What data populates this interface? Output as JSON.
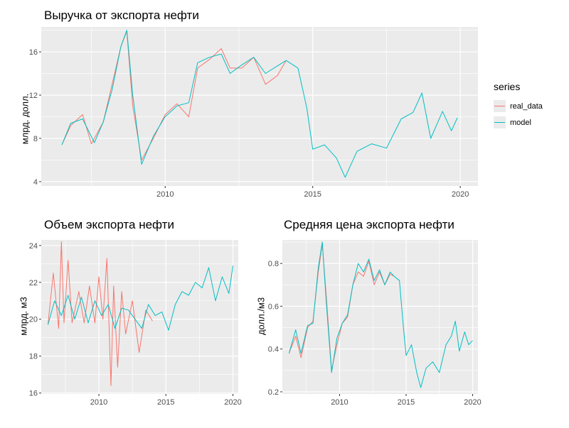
{
  "colors": {
    "real_data": "#F8766D",
    "model": "#00BFC4",
    "panel": "#EBEBEB",
    "grid": "#FFFFFF"
  },
  "legend": {
    "title": "series",
    "items": [
      {
        "label": "real_data",
        "key": "real_data"
      },
      {
        "label": "model",
        "key": "model"
      }
    ]
  },
  "chart_data": [
    {
      "type": "line",
      "title": "Выручка от экспорта нефти",
      "ylabel": "млрд. долл.",
      "xlabel": "",
      "xlim": [
        2005.8,
        2020.6
      ],
      "ylim": [
        3.6,
        18.3
      ],
      "xticks": [
        2010,
        2015,
        2020
      ],
      "yticks": [
        4,
        8,
        12,
        16
      ],
      "series": [
        {
          "name": "real_data",
          "x": [
            2006.5,
            2006.8,
            2007.2,
            2007.5,
            2007.9,
            2008.2,
            2008.5,
            2008.7,
            2008.9,
            2009.2,
            2009.6,
            2010.0,
            2010.4,
            2010.8,
            2011.1,
            2011.5,
            2011.9,
            2012.2,
            2012.6,
            2013.0,
            2013.4,
            2013.8,
            2014.1
          ],
          "y": [
            7.4,
            9.2,
            10.2,
            7.5,
            9.5,
            13.0,
            16.5,
            17.9,
            11.0,
            6.0,
            8.0,
            10.2,
            11.2,
            10.0,
            14.5,
            15.3,
            16.3,
            14.5,
            14.5,
            15.5,
            13.0,
            13.8,
            15.2
          ]
        },
        {
          "name": "model",
          "x": [
            2006.5,
            2006.8,
            2007.2,
            2007.6,
            2007.9,
            2008.2,
            2008.5,
            2008.7,
            2008.9,
            2009.2,
            2009.6,
            2010.0,
            2010.4,
            2010.8,
            2011.1,
            2011.5,
            2011.9,
            2012.2,
            2012.6,
            2013.0,
            2013.4,
            2013.8,
            2014.1,
            2014.5,
            2014.8,
            2015.0,
            2015.4,
            2015.8,
            2016.1,
            2016.5,
            2017.0,
            2017.5,
            2018.0,
            2018.4,
            2018.7,
            2019.0,
            2019.4,
            2019.7,
            2019.9
          ],
          "y": [
            7.4,
            9.4,
            9.8,
            7.6,
            9.5,
            12.5,
            16.5,
            18.0,
            12.0,
            5.6,
            8.2,
            10.0,
            11.0,
            11.3,
            15.0,
            15.5,
            15.8,
            14.0,
            14.8,
            15.5,
            14.0,
            14.7,
            15.2,
            14.5,
            10.8,
            7.0,
            7.4,
            6.2,
            4.4,
            6.8,
            7.5,
            7.1,
            9.8,
            10.4,
            12.2,
            8.0,
            10.5,
            8.7,
            9.9
          ]
        }
      ]
    },
    {
      "type": "line",
      "title": "Объем экспорта нефти",
      "ylabel": "млрд. м3",
      "xlabel": "",
      "xlim": [
        2005.7,
        2020.4
      ],
      "ylim": [
        15.95,
        24.3
      ],
      "xticks": [
        2010,
        2015,
        2020
      ],
      "yticks": [
        16,
        18,
        20,
        22,
        24
      ],
      "series": [
        {
          "name": "real_data",
          "x": [
            2006.2,
            2006.6,
            2007.0,
            2007.2,
            2007.4,
            2007.7,
            2008.0,
            2008.5,
            2008.9,
            2009.3,
            2009.7,
            2010.0,
            2010.3,
            2010.6,
            2010.9,
            2011.1,
            2011.4,
            2011.7,
            2012.0,
            2012.5,
            2013.0,
            2013.5,
            2014.0
          ],
          "y": [
            19.7,
            22.5,
            19.5,
            24.2,
            19.8,
            23.2,
            19.8,
            21.5,
            19.8,
            21.8,
            19.8,
            22.3,
            20.0,
            23.3,
            16.4,
            21.8,
            17.4,
            21.5,
            19.2,
            21.0,
            18.2,
            20.5,
            19.9
          ]
        },
        {
          "name": "model",
          "x": [
            2006.2,
            2006.7,
            2007.2,
            2007.7,
            2008.2,
            2008.7,
            2009.2,
            2009.7,
            2010.2,
            2010.7,
            2011.2,
            2011.7,
            2012.2,
            2012.7,
            2013.2,
            2013.7,
            2014.2,
            2014.7,
            2015.2,
            2015.7,
            2016.2,
            2016.7,
            2017.2,
            2017.7,
            2018.2,
            2018.7,
            2019.2,
            2019.7,
            2020.0
          ],
          "y": [
            19.7,
            21.0,
            20.2,
            21.3,
            20.0,
            21.2,
            19.8,
            21.0,
            20.2,
            20.8,
            19.5,
            20.6,
            20.5,
            20.0,
            19.5,
            20.8,
            20.2,
            20.4,
            19.4,
            20.8,
            21.5,
            21.3,
            22.0,
            21.7,
            22.8,
            21.0,
            22.3,
            21.4,
            22.9
          ]
        }
      ]
    },
    {
      "type": "line",
      "title": "Средняя цена экспорта нефти",
      "ylabel": "долл./м3",
      "xlabel": "",
      "xlim": [
        2005.7,
        2020.4
      ],
      "ylim": [
        0.19,
        0.91
      ],
      "xticks": [
        2010,
        2015,
        2020
      ],
      "yticks": [
        0.2,
        0.4,
        0.6,
        0.8
      ],
      "series": [
        {
          "name": "real_data",
          "x": [
            2006.2,
            2006.7,
            2007.1,
            2007.6,
            2008.0,
            2008.4,
            2008.7,
            2009.0,
            2009.4,
            2009.8,
            2010.2,
            2010.6,
            2011.0,
            2011.4,
            2011.8,
            2012.2,
            2012.6,
            2013.0,
            2013.4,
            2013.8,
            2014.1
          ],
          "y": [
            0.38,
            0.46,
            0.36,
            0.5,
            0.53,
            0.76,
            0.89,
            0.65,
            0.3,
            0.42,
            0.52,
            0.55,
            0.7,
            0.76,
            0.74,
            0.81,
            0.7,
            0.76,
            0.7,
            0.75,
            0.74
          ]
        },
        {
          "name": "model",
          "x": [
            2006.2,
            2006.7,
            2007.1,
            2007.6,
            2008.0,
            2008.4,
            2008.7,
            2009.0,
            2009.4,
            2009.8,
            2010.2,
            2010.6,
            2011.0,
            2011.4,
            2011.8,
            2012.2,
            2012.6,
            2013.0,
            2013.4,
            2013.8,
            2014.1,
            2014.5,
            2014.8,
            2015.0,
            2015.4,
            2015.8,
            2016.1,
            2016.5,
            2017.0,
            2017.5,
            2018.0,
            2018.4,
            2018.7,
            2019.0,
            2019.4,
            2019.7,
            2020.0
          ],
          "y": [
            0.38,
            0.49,
            0.38,
            0.51,
            0.52,
            0.78,
            0.9,
            0.62,
            0.29,
            0.45,
            0.52,
            0.56,
            0.7,
            0.8,
            0.76,
            0.82,
            0.72,
            0.77,
            0.7,
            0.76,
            0.74,
            0.72,
            0.5,
            0.37,
            0.42,
            0.29,
            0.22,
            0.31,
            0.34,
            0.29,
            0.42,
            0.46,
            0.53,
            0.39,
            0.48,
            0.42,
            0.44
          ]
        }
      ]
    }
  ]
}
